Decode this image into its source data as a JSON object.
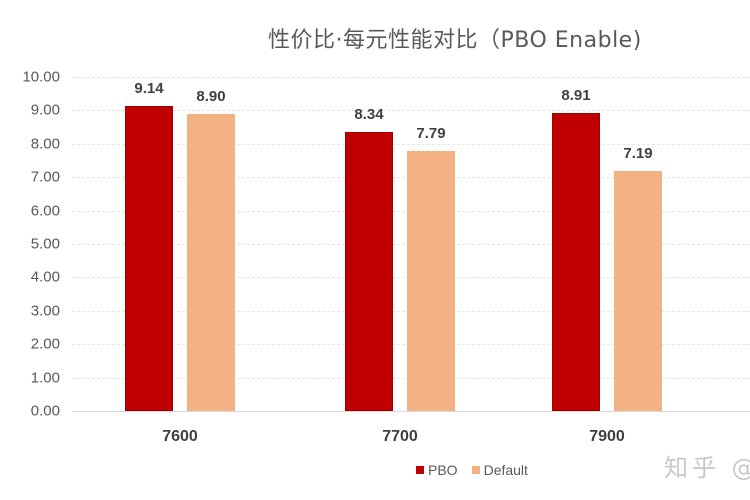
{
  "chart_data": {
    "type": "bar",
    "title": "性价比·每元性能对比（PBO Enable)",
    "xlabel": "",
    "ylabel": "",
    "categories": [
      "7600",
      "7700",
      "7900"
    ],
    "series": [
      {
        "name": "PBO",
        "color": "#c00000",
        "values": [
          9.14,
          8.34,
          8.91
        ]
      },
      {
        "name": "Default",
        "color": "#f4b183",
        "values": [
          8.9,
          7.79,
          7.19
        ]
      }
    ],
    "value_labels": {
      "PBO": [
        "9.14",
        "8.34",
        "8.91"
      ],
      "Default": [
        "8.90",
        "7.79",
        "7.19"
      ]
    },
    "ylim": [
      0,
      10
    ],
    "yticks": [
      "0.00",
      "1.00",
      "2.00",
      "3.00",
      "4.00",
      "5.00",
      "6.00",
      "7.00",
      "8.00",
      "9.00",
      "10.00"
    ],
    "grid": true,
    "legend_position": "bottom"
  },
  "watermark": "知乎 @"
}
